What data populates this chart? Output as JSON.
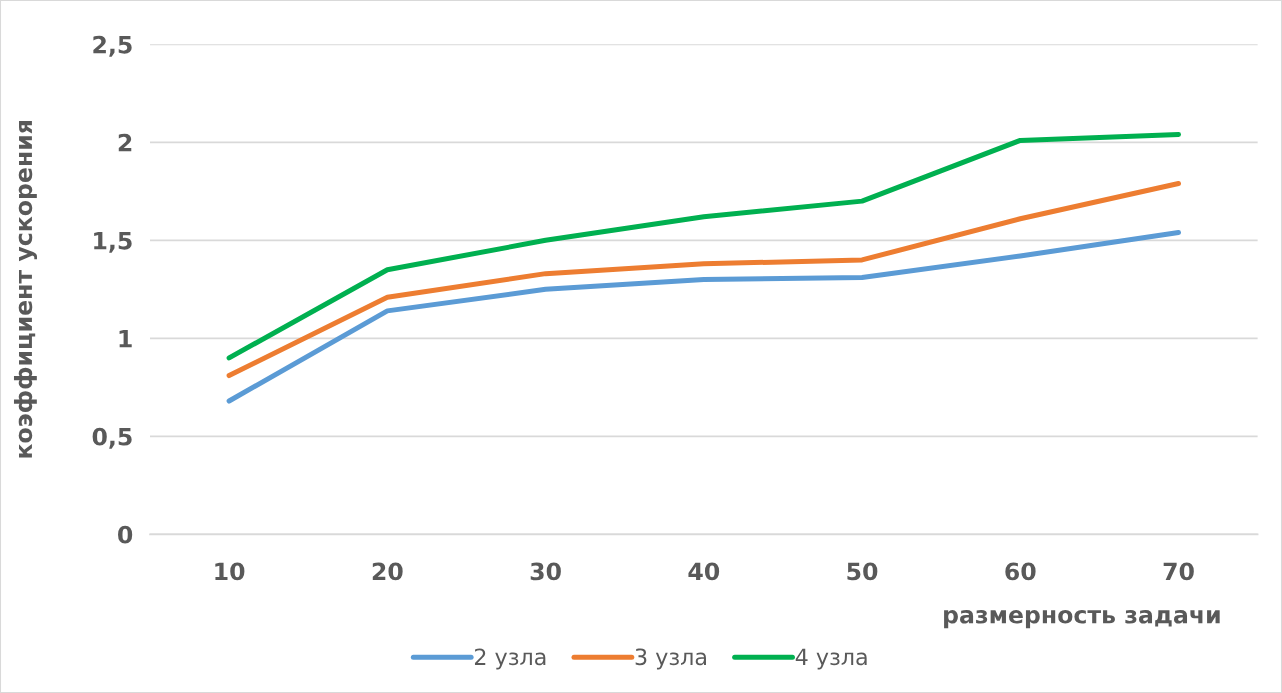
{
  "chart_data": {
    "type": "line",
    "xlabel": "размерность задачи",
    "ylabel": "коэффициент ускорения",
    "categories": [
      "10",
      "20",
      "30",
      "40",
      "50",
      "60",
      "70"
    ],
    "series": [
      {
        "name": "2 узла",
        "color": "#5b9bd5",
        "values": [
          0.68,
          1.14,
          1.25,
          1.3,
          1.31,
          1.42,
          1.54
        ]
      },
      {
        "name": "3 узла",
        "color": "#ed7d31",
        "values": [
          0.81,
          1.21,
          1.33,
          1.38,
          1.4,
          1.61,
          1.79
        ]
      },
      {
        "name": "4 узла",
        "color": "#00b050",
        "values": [
          0.9,
          1.35,
          1.5,
          1.62,
          1.7,
          2.01,
          2.04
        ]
      }
    ],
    "ylim": [
      0,
      2.5
    ],
    "yticks": [
      0,
      {
        "value": 0.5,
        "label": "0,5"
      },
      1,
      {
        "value": 1.5,
        "label": "1,5"
      },
      2,
      {
        "value": 2.5,
        "label": "2,5"
      }
    ],
    "grid": "y",
    "legend": "bottom",
    "line_style": "solid"
  }
}
